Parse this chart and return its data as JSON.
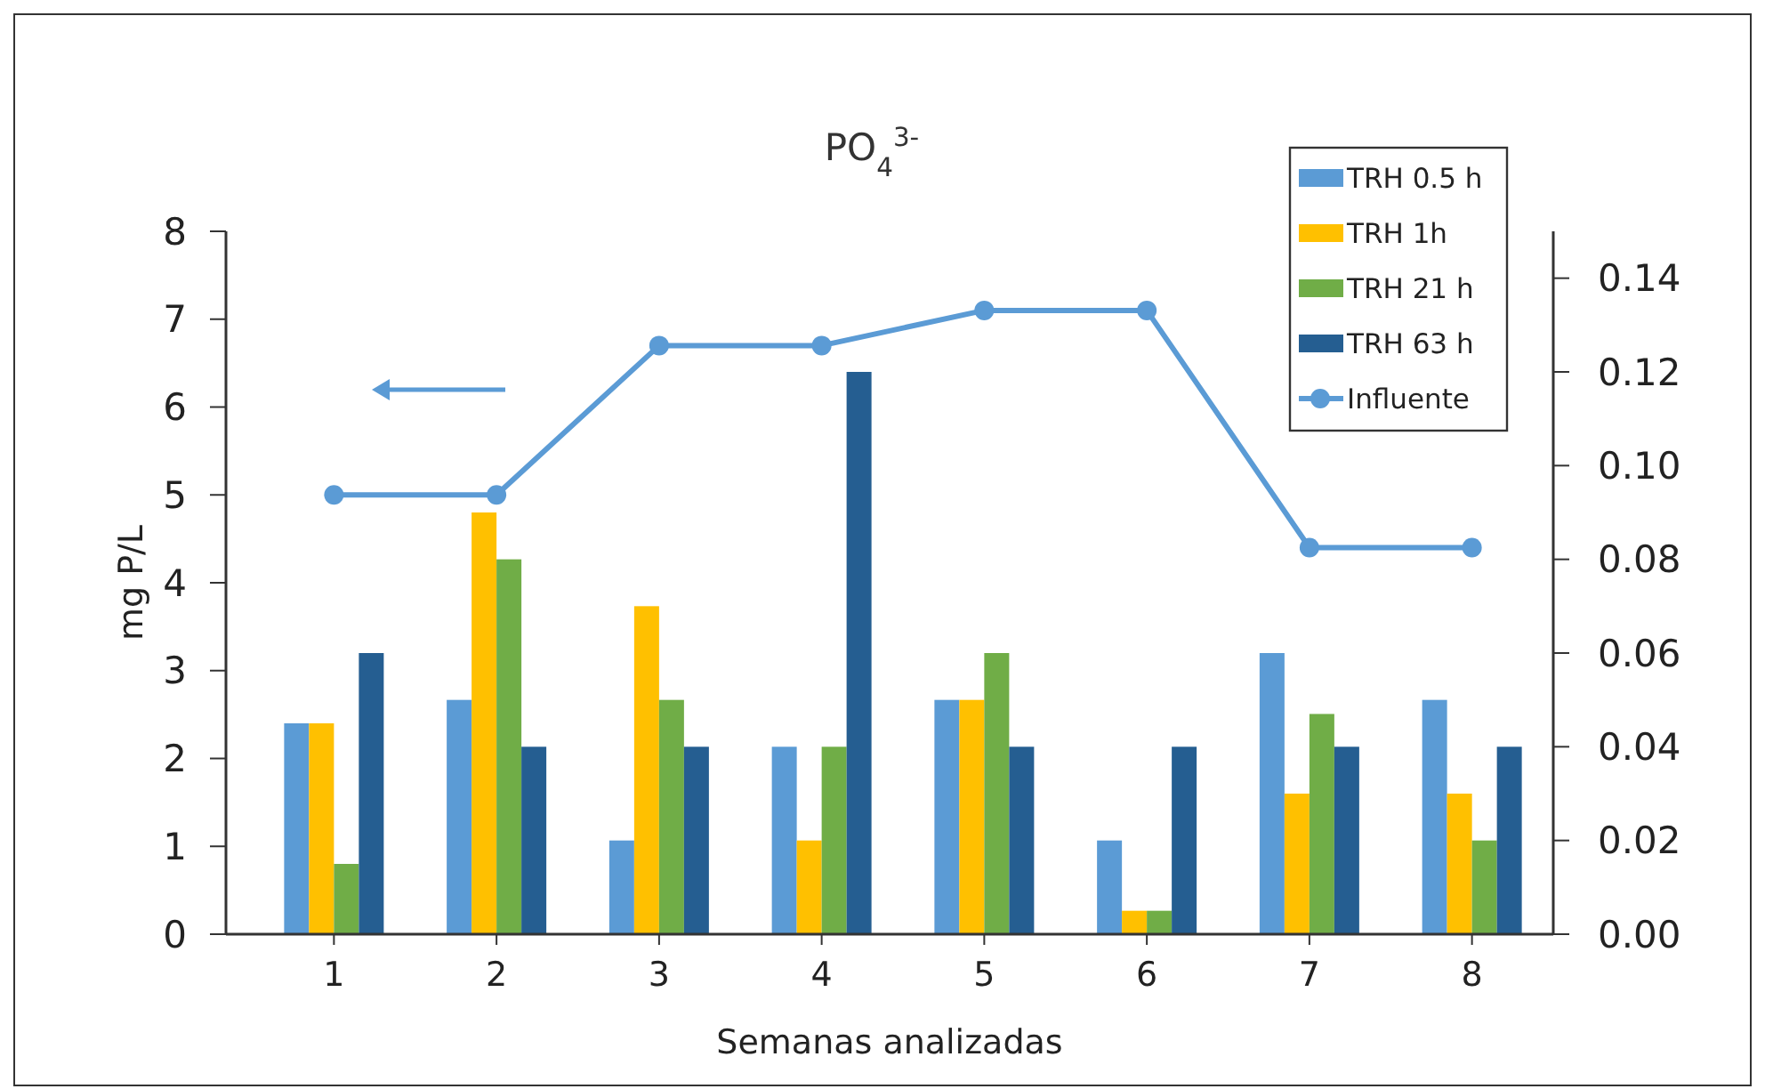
{
  "chart_data": {
    "type": "bar",
    "title": "PO$_{4}$$^{3-}$",
    "xlabel": "Semanas analizadas",
    "ylabel": "mg P/L",
    "categories": [
      "1",
      "2",
      "3",
      "4",
      "5",
      "6",
      "7",
      "8"
    ],
    "series": [
      {
        "name": "TRH 0.5 h",
        "axis": "y2",
        "color": "#5b9bd5",
        "values": [
          0.045,
          0.05,
          0.02,
          0.04,
          0.05,
          0.02,
          0.06,
          0.05
        ]
      },
      {
        "name": "TRH 1h",
        "axis": "y2",
        "color": "#ffc000",
        "values": [
          0.045,
          0.09,
          0.07,
          0.02,
          0.05,
          0.005,
          0.03,
          0.03
        ]
      },
      {
        "name": "TRH 21 h",
        "axis": "y2",
        "color": "#70ad47",
        "values": [
          0.015,
          0.08,
          0.05,
          0.04,
          0.06,
          0.005,
          0.047,
          0.02
        ]
      },
      {
        "name": "TRH 63 h",
        "axis": "y2",
        "color": "#255e91",
        "values": [
          0.06,
          0.04,
          0.04,
          0.12,
          0.04,
          0.04,
          0.04,
          0.04
        ]
      },
      {
        "name": "Influente",
        "type": "line",
        "axis": "y",
        "color": "#5b9bd5",
        "marker": "circle",
        "values": [
          5.0,
          5.0,
          6.7,
          6.7,
          7.1,
          7.1,
          4.4,
          4.4
        ]
      }
    ],
    "ylim": [
      0,
      8
    ],
    "yticks": [
      0,
      1,
      2,
      3,
      4,
      5,
      6,
      7,
      8
    ],
    "y2lim": [
      0,
      0.15
    ],
    "y2ticks": [
      {
        "value": 0,
        "label": "0.00"
      },
      {
        "value": 0.02,
        "label": "0.02"
      },
      {
        "value": 0.04,
        "label": "0.04"
      },
      {
        "value": 0.06,
        "label": "0.06"
      },
      {
        "value": 0.08,
        "label": "0.08"
      },
      {
        "value": 0.1,
        "label": "0.10"
      },
      {
        "value": 0.12,
        "label": "0.12"
      },
      {
        "value": 0.14,
        "label": "0.14"
      }
    ],
    "legend": "top right"
  }
}
